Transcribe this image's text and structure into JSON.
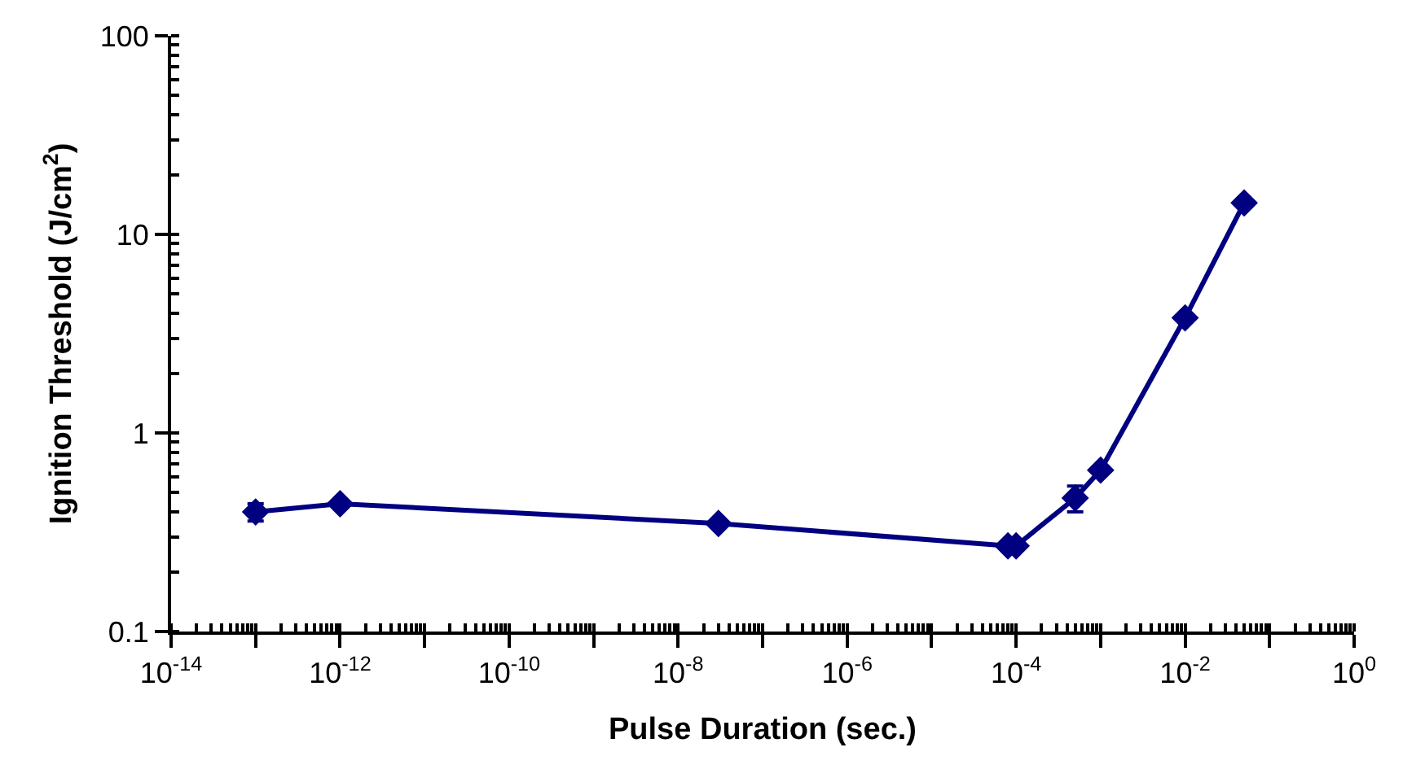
{
  "chart_data": {
    "type": "line",
    "xlabel": "Pulse Duration (sec.)",
    "ylabel": "Ignition Threshold (J/cm$^{2}$)",
    "x": [
      1e-13,
      1e-12,
      3e-08,
      8e-05,
      0.0001,
      0.0005,
      0.001,
      0.01,
      0.05
    ],
    "series": [
      {
        "color": "#000080",
        "values": [
          0.4,
          0.44,
          0.35,
          0.27,
          0.27,
          0.47,
          0.65,
          3.8,
          14.4
        ],
        "errors": [
          0.04,
          null,
          null,
          null,
          null,
          0.07,
          null,
          null,
          null
        ]
      }
    ],
    "log": "xy",
    "marker": "diamond",
    "line_style": "solid",
    "xlim": [
      1e-14,
      1
    ],
    "xticks": [
      {
        "value": 1e-14,
        "label": "10$^{-14}$"
      },
      {
        "value": 1e-13,
        "label": null
      },
      {
        "value": 1e-12,
        "label": "10$^{-12}$"
      },
      {
        "value": 1e-11,
        "label": null
      },
      {
        "value": 1e-10,
        "label": "10$^{-10}$"
      },
      {
        "value": 1e-09,
        "label": null
      },
      {
        "value": 1e-08,
        "label": "10$^{-8}$"
      },
      {
        "value": 1e-07,
        "label": null
      },
      {
        "value": 1e-06,
        "label": "10$^{-6}$"
      },
      {
        "value": 1e-05,
        "label": null
      },
      {
        "value": 0.0001,
        "label": "10$^{-4}$"
      },
      {
        "value": 0.001,
        "label": null
      },
      {
        "value": 0.01,
        "label": "10$^{-2}$"
      },
      {
        "value": 0.1,
        "label": null
      },
      {
        "value": 1,
        "label": "10$^{0}$"
      }
    ],
    "ylim": [
      0.1,
      100
    ],
    "yticks": [
      0.1,
      1,
      10,
      100
    ]
  }
}
